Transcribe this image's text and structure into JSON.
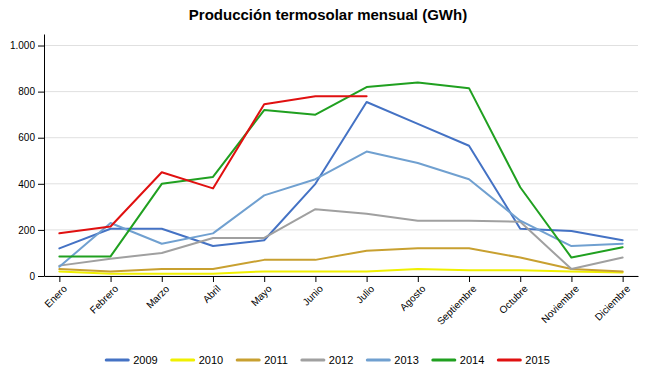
{
  "chart_data": {
    "type": "line",
    "title": "Producción termosolar mensual (GWh)",
    "categories": [
      "Enero",
      "Febrero",
      "Marzo",
      "Abril",
      "Mayo",
      "Junio",
      "Julio",
      "Agosto",
      "Septiembre",
      "Octubre",
      "Noviembre",
      "Diciembre"
    ],
    "series": [
      {
        "name": "2009",
        "color": "#4472c4",
        "values": [
          120,
          205,
          205,
          130,
          155,
          400,
          755,
          660,
          565,
          205,
          195,
          155
        ]
      },
      {
        "name": "2010",
        "color": "#f0f000",
        "values": [
          20,
          10,
          10,
          10,
          20,
          20,
          20,
          30,
          25,
          25,
          20,
          15
        ]
      },
      {
        "name": "2011",
        "color": "#c8a030",
        "values": [
          30,
          20,
          30,
          30,
          70,
          70,
          110,
          120,
          120,
          80,
          30,
          20
        ]
      },
      {
        "name": "2012",
        "color": "#a0a0a0",
        "values": [
          45,
          75,
          100,
          165,
          165,
          290,
          270,
          240,
          240,
          235,
          30,
          80
        ]
      },
      {
        "name": "2013",
        "color": "#70a0d0",
        "values": [
          40,
          230,
          140,
          185,
          350,
          420,
          540,
          490,
          420,
          240,
          130,
          140
        ]
      },
      {
        "name": "2014",
        "color": "#20a020",
        "values": [
          85,
          85,
          400,
          430,
          720,
          700,
          820,
          840,
          815,
          385,
          80,
          125
        ]
      },
      {
        "name": "2015",
        "color": "#e01010",
        "values": [
          185,
          215,
          450,
          380,
          745,
          780,
          780,
          null,
          null,
          null,
          null,
          null
        ]
      }
    ],
    "ylim": [
      0,
      1050
    ],
    "yticks": [
      0,
      200,
      400,
      600,
      800,
      {
        "value": 1000,
        "label": "1.000"
      }
    ],
    "grid": true,
    "legend": "bottom"
  }
}
